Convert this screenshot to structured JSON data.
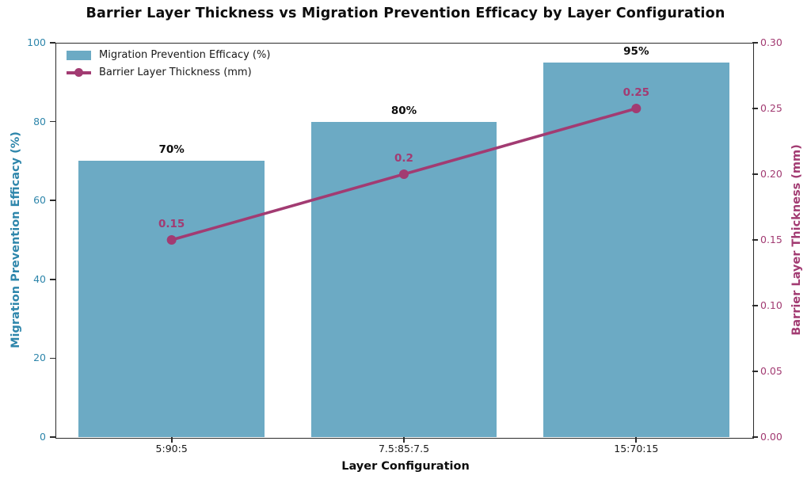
{
  "colors": {
    "teal": "#2E86AB",
    "magenta": "#A23B72",
    "bar_fill": "#2E86AB",
    "bar_opacity": 0.7,
    "text_dark": "#1a1a1a",
    "spine": "#2b2b2b"
  },
  "chart_data": {
    "type": "bar+line",
    "title": "Barrier Layer Thickness vs Migration Prevention Efficacy by Layer Configuration",
    "xlabel": "Layer Configuration",
    "categories": [
      "5:90:5",
      "7.5:85:7.5",
      "15:70:15"
    ],
    "series": [
      {
        "name": "Migration Prevention Efficacy (%)",
        "type": "bar",
        "axis": "left",
        "values": [
          70,
          80,
          95
        ],
        "labels": [
          "70%",
          "80%",
          "95%"
        ]
      },
      {
        "name": "Barrier Layer Thickness (mm)",
        "type": "line",
        "axis": "right",
        "values": [
          0.15,
          0.2,
          0.25
        ],
        "labels": [
          "0.15",
          "0.2",
          "0.25"
        ]
      }
    ],
    "left_axis": {
      "label": "Migration Prevention Efficacy (%)",
      "min": 0,
      "max": 100,
      "ticks": [
        "0",
        "20",
        "40",
        "60",
        "80",
        "100"
      ]
    },
    "right_axis": {
      "label": "Barrier Layer Thickness (mm)",
      "min": 0,
      "max": 0.3,
      "ticks": [
        "0.00",
        "0.05",
        "0.10",
        "0.15",
        "0.20",
        "0.25",
        "0.30"
      ]
    },
    "legend_position": "upper left",
    "grid": false
  }
}
